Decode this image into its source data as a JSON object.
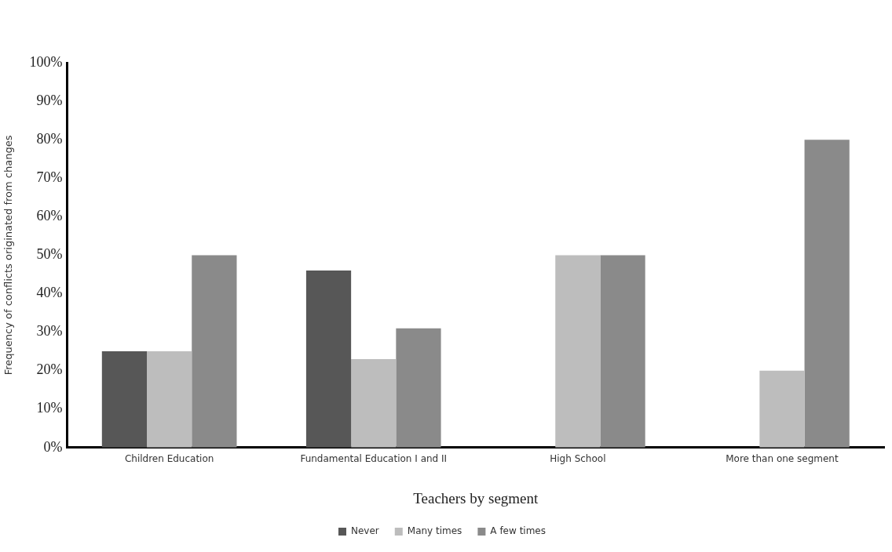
{
  "chart_data": {
    "type": "bar",
    "xlabel": "Teachers by segment",
    "ylabel": "Frequency of conflicts originated from changes",
    "categories": [
      "Children Education",
      "Fundamental Education I and II",
      "High School",
      "More than one segment"
    ],
    "series": [
      {
        "name": "Never",
        "color": "#575757",
        "values": [
          25,
          46,
          0,
          0
        ]
      },
      {
        "name": "Many times",
        "color": "#bdbdbd",
        "values": [
          25,
          23,
          50,
          20
        ]
      },
      {
        "name": "A few times",
        "color": "#8a8a8a",
        "values": [
          50,
          31,
          50,
          80
        ]
      }
    ],
    "ylim": [
      0,
      100
    ],
    "yticks": [
      {
        "value": 0,
        "label": "0%"
      },
      {
        "value": 10,
        "label": "10%"
      },
      {
        "value": 20,
        "label": "20%"
      },
      {
        "value": 30,
        "label": "30%"
      },
      {
        "value": 40,
        "label": "40%"
      },
      {
        "value": 50,
        "label": "50%"
      },
      {
        "value": 60,
        "label": "60%"
      },
      {
        "value": 70,
        "label": "70%"
      },
      {
        "value": 80,
        "label": "80%"
      },
      {
        "value": 90,
        "label": "90%"
      },
      {
        "value": 100,
        "label": "100%"
      }
    ],
    "grid": false,
    "legend": "bottom"
  }
}
